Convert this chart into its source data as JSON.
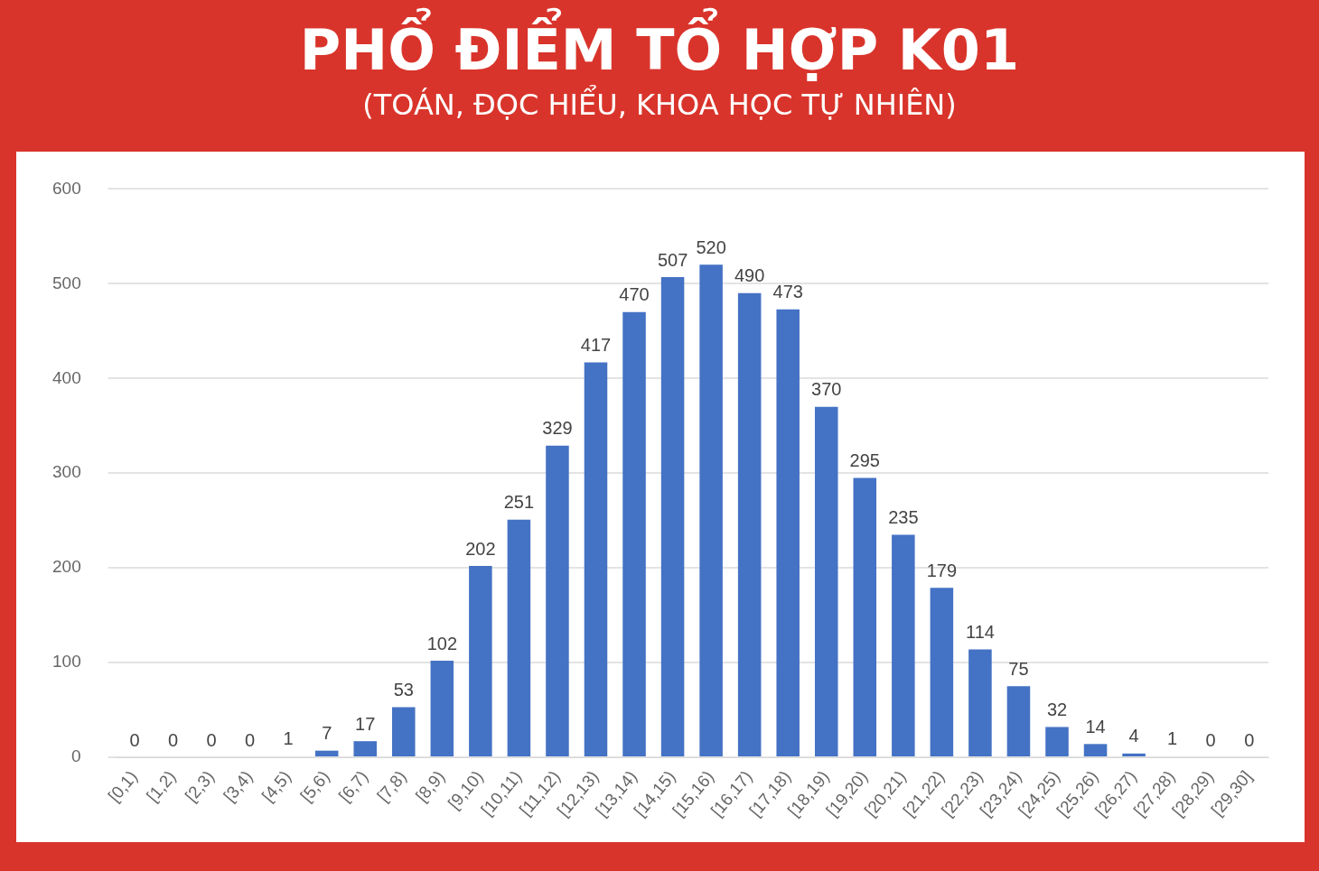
{
  "chart_data": {
    "type": "bar",
    "title": "PHỔ ĐIỂM TỔ HỢP K01",
    "subtitle": "(TOÁN, ĐỌC HIỂU, KHOA HỌC TỰ NHIÊN)",
    "categories": [
      "[0,1)",
      "[1,2)",
      "[2,3)",
      "[3,4)",
      "[4,5)",
      "[5,6)",
      "[6,7)",
      "[7,8)",
      "[8,9)",
      "[9,10)",
      "[10,11)",
      "[11,12)",
      "[12,13)",
      "[13,14)",
      "[14,15)",
      "[15,16)",
      "[16,17)",
      "[17,18)",
      "[18,19)",
      "[19,20)",
      "[20,21)",
      "[21,22)",
      "[22,23)",
      "[23,24)",
      "[24,25)",
      "[25,26)",
      "[26,27)",
      "[27,28)",
      "[28,29)",
      "[29,30]"
    ],
    "values": [
      0,
      0,
      0,
      0,
      1,
      7,
      17,
      53,
      102,
      202,
      251,
      329,
      417,
      470,
      507,
      520,
      490,
      473,
      370,
      295,
      235,
      179,
      114,
      75,
      32,
      14,
      4,
      1,
      0,
      0
    ],
    "color": "#4472c4",
    "ylim": [
      0,
      600
    ],
    "yticks": [
      0,
      100,
      200,
      300,
      400,
      500,
      600
    ],
    "grid": "y",
    "data_labels": true
  }
}
